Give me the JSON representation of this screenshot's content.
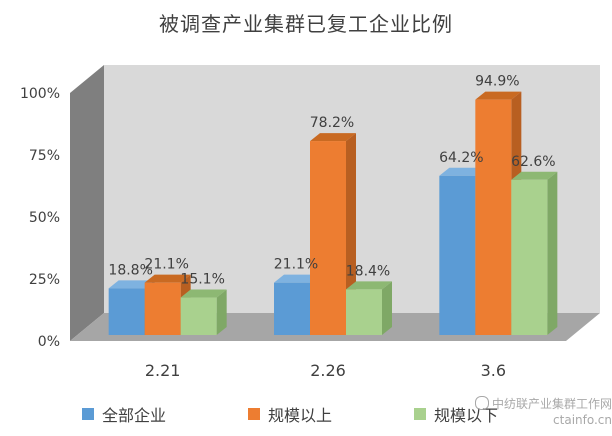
{
  "title": "被调查产业集群已复工企业比例",
  "chart_data": {
    "type": "bar",
    "title": "被调查产业集群已复工企业比例",
    "xlabel": "",
    "ylabel": "",
    "categories": [
      "2.21",
      "2.26",
      "3.6"
    ],
    "ylim": [
      0,
      100
    ],
    "yticks": [
      "0%",
      "25%",
      "50%",
      "75%",
      "100%"
    ],
    "series": [
      {
        "name": "全部企业",
        "values": [
          18.8,
          21.1,
          64.2
        ],
        "labels": [
          "18.8%",
          "21.1%",
          "64.2%"
        ],
        "color": "#5B9BD5",
        "side": "#3F74A6",
        "top": "#7EB2E0"
      },
      {
        "name": "规模以上",
        "values": [
          21.1,
          78.2,
          94.9
        ],
        "labels": [
          "21.1%",
          "78.2%",
          "94.9%"
        ],
        "color": "#ED7D31",
        "side": "#B85F21",
        "top": "#C96A22"
      },
      {
        "name": "规模以下",
        "values": [
          15.1,
          18.4,
          62.6
        ],
        "labels": [
          "15.1%",
          "18.4%",
          "62.6%"
        ],
        "color": "#A9D18E",
        "side": "#7FA866",
        "top": "#8DB873"
      }
    ],
    "legend_position": "bottom",
    "style": "3d-clustered-column",
    "grid": false
  },
  "watermark": {
    "line1": "中纺联产业集群工作网",
    "line2": "ctainfo.cn"
  }
}
